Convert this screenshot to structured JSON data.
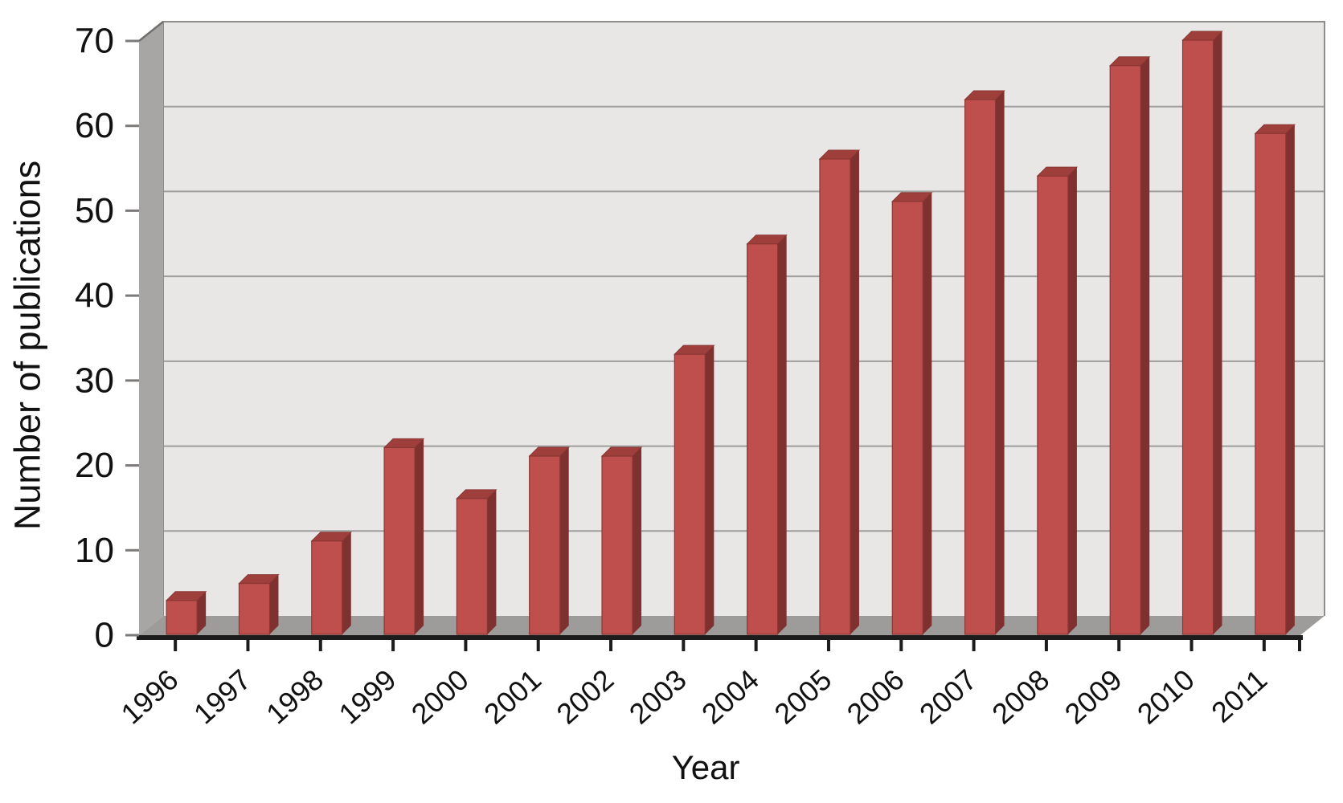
{
  "chart_data": {
    "type": "bar",
    "style": "excel-3d-clustered-column",
    "title": "",
    "xlabel": "Year",
    "ylabel": "Number of publications",
    "categories": [
      "1996",
      "1997",
      "1998",
      "1999",
      "2000",
      "2001",
      "2002",
      "2003",
      "2004",
      "2005",
      "2006",
      "2007",
      "2008",
      "2009",
      "2010",
      "2011"
    ],
    "values": [
      4,
      6,
      11,
      22,
      16,
      21,
      21,
      33,
      46,
      56,
      51,
      63,
      54,
      67,
      70,
      59
    ],
    "series_name": "Number of publications",
    "ylim": [
      0,
      70
    ],
    "ytick_interval": 10,
    "ytick_labels": [
      "0",
      "10",
      "20",
      "30",
      "40",
      "50",
      "60",
      "70"
    ],
    "grid": true,
    "legend": false,
    "x_labels_rotation_deg": -42,
    "colors": {
      "bar_front": "#bf4f4d",
      "bar_side": "#7e312f",
      "bar_top": "#9e3f3c",
      "bar_outline": "#8b3734",
      "plot_bg": "#e8e7e6",
      "wall": "#a8a6a4",
      "floor": "#9e9c9a",
      "gridline": "#9f9e9d",
      "plot_border": "#8e8d8c",
      "wall_top_edge": "#71706f",
      "axis_line": "#1c1c1c",
      "y_tick": "#7b7a79",
      "text": "#111111"
    }
  }
}
